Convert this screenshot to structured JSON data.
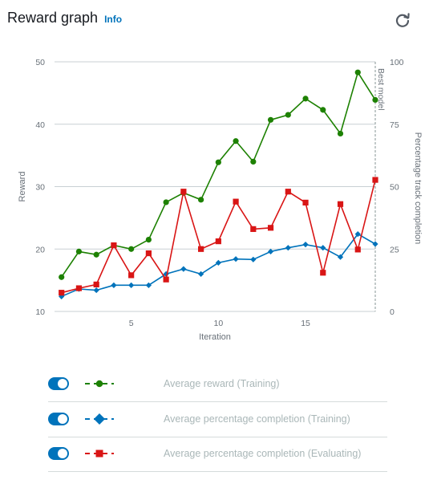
{
  "header": {
    "title": "Reward graph",
    "info_label": "Info"
  },
  "icons": {
    "refresh": "refresh-icon"
  },
  "colors": {
    "reward": "#1d8102",
    "training_pct": "#0073bb",
    "eval_pct": "#d91515",
    "muted": "#687078"
  },
  "legend": [
    {
      "label": "Average reward (Training)",
      "marker": "circle",
      "color": "#1d8102",
      "enabled": true
    },
    {
      "label": "Average percentage completion (Training)",
      "marker": "diamond",
      "color": "#0073bb",
      "enabled": true
    },
    {
      "label": "Average percentage completion (Evaluating)",
      "marker": "square",
      "color": "#d91515",
      "enabled": true
    }
  ],
  "chart_data": {
    "type": "line",
    "xlabel": "Iteration",
    "ylabel": "Reward",
    "y2label": "Percentage track completion",
    "annotation": "Best model",
    "annotation_x": 19,
    "xlim": [
      0.6,
      19
    ],
    "xticks": [
      5,
      10,
      15
    ],
    "ylim": [
      10,
      50
    ],
    "yticks": [
      10,
      20,
      30,
      40,
      50
    ],
    "y2lim": [
      0,
      100
    ],
    "y2ticks": [
      0,
      25,
      50,
      75,
      100
    ],
    "grid": true,
    "x": [
      1,
      2,
      3,
      4,
      5,
      6,
      7,
      8,
      9,
      10,
      11,
      12,
      13,
      14,
      15,
      16,
      17,
      18,
      19
    ],
    "series": [
      {
        "name": "Average reward (Training)",
        "axis": "left",
        "marker": "circle",
        "color": "#1d8102",
        "values": [
          15.5,
          19.6,
          19.1,
          20.6,
          20.0,
          21.5,
          27.5,
          29.0,
          27.9,
          33.9,
          37.3,
          34.0,
          40.7,
          41.5,
          44.1,
          42.3,
          38.5,
          48.3,
          43.9
        ]
      },
      {
        "name": "Average percentage completion (Training)",
        "axis": "right",
        "marker": "diamond",
        "color": "#0073bb",
        "values": [
          6,
          9,
          8.5,
          10.5,
          10.5,
          10.5,
          15,
          17,
          15,
          19.5,
          21,
          20.8,
          24,
          25.5,
          26.8,
          25.5,
          21.8,
          31,
          27
        ]
      },
      {
        "name": "Average percentage completion (Evaluating)",
        "axis": "right",
        "marker": "square",
        "color": "#d91515",
        "values": [
          7.5,
          9.3,
          10.8,
          26.5,
          14.5,
          23.3,
          12.8,
          48,
          25,
          28.1,
          44,
          33,
          33.5,
          48,
          43.6,
          15.5,
          43,
          24.8,
          52.7
        ]
      }
    ]
  }
}
